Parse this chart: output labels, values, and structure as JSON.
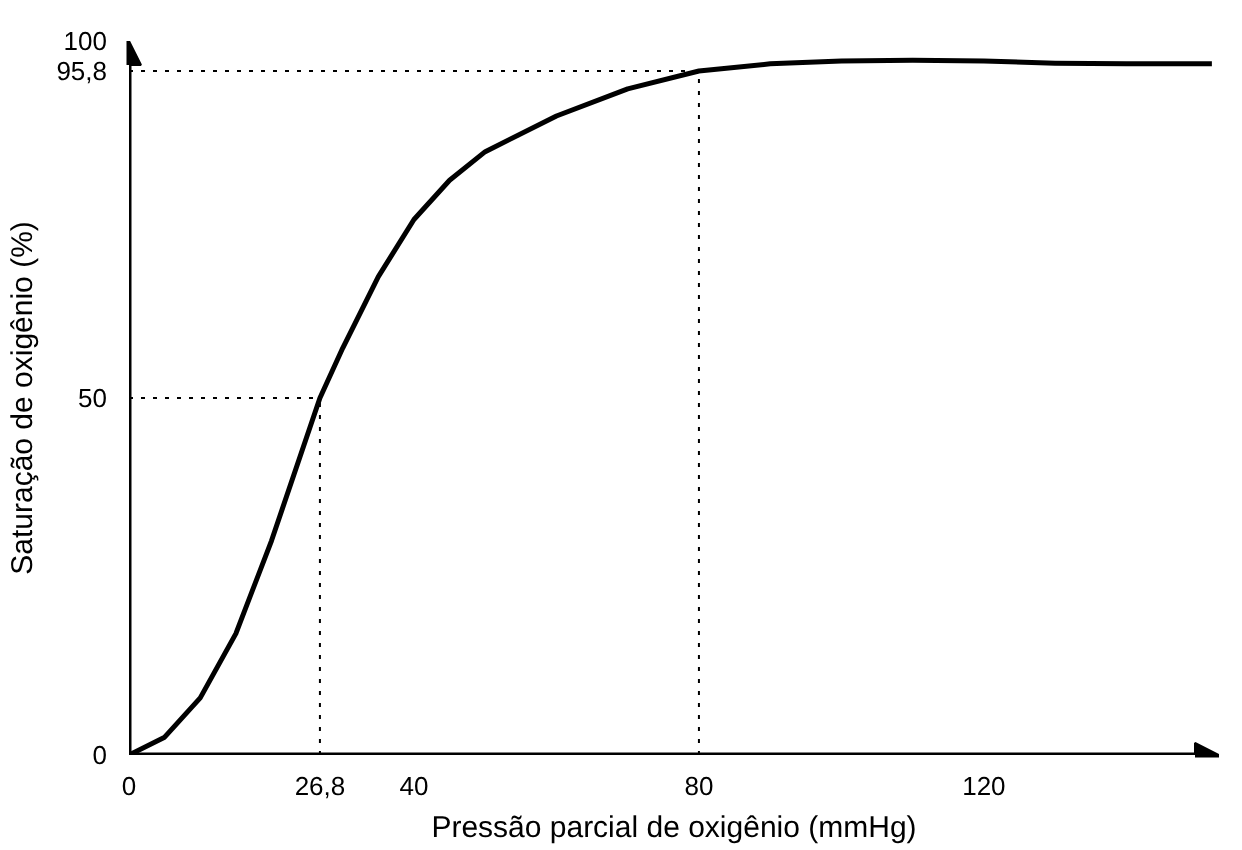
{
  "chart_data": {
    "type": "line",
    "xlabel": "Pressão parcial de oxigênio (mmHg)",
    "ylabel": "Saturação de oxigênio (%)",
    "x": [
      0,
      5,
      10,
      15,
      20,
      26.8,
      30,
      35,
      40,
      45,
      50,
      60,
      70,
      80,
      90,
      100,
      110,
      120,
      130,
      140,
      152
    ],
    "series": [
      {
        "color": "#000000",
        "values": [
          0,
          2.5,
          8,
          17,
          30,
          50,
          57,
          67,
          75,
          80.5,
          84.5,
          89.5,
          93.3,
          95.8,
          96.8,
          97.2,
          97.3,
          97.2,
          96.9,
          96.8,
          96.8
        ]
      }
    ],
    "xlim": [
      0,
      153
    ],
    "ylim": [
      0,
      100
    ],
    "xticks": [
      0,
      {
        "value": 26.8,
        "label": "26,8"
      },
      40,
      80,
      120
    ],
    "yticks": [
      0,
      50,
      {
        "value": 95.8,
        "label": "95,8"
      },
      100
    ],
    "ref_lines": [
      {
        "axis": "x",
        "value": 26.8,
        "line_style": "dotted"
      },
      {
        "axis": "y",
        "value": 50,
        "line_style": "dotted"
      },
      {
        "axis": "x",
        "value": 80,
        "line_style": "dotted"
      },
      {
        "axis": "y",
        "value": 95.8,
        "line_style": "dotted"
      }
    ],
    "grid": false,
    "marker": "none",
    "line_style": "solid"
  }
}
